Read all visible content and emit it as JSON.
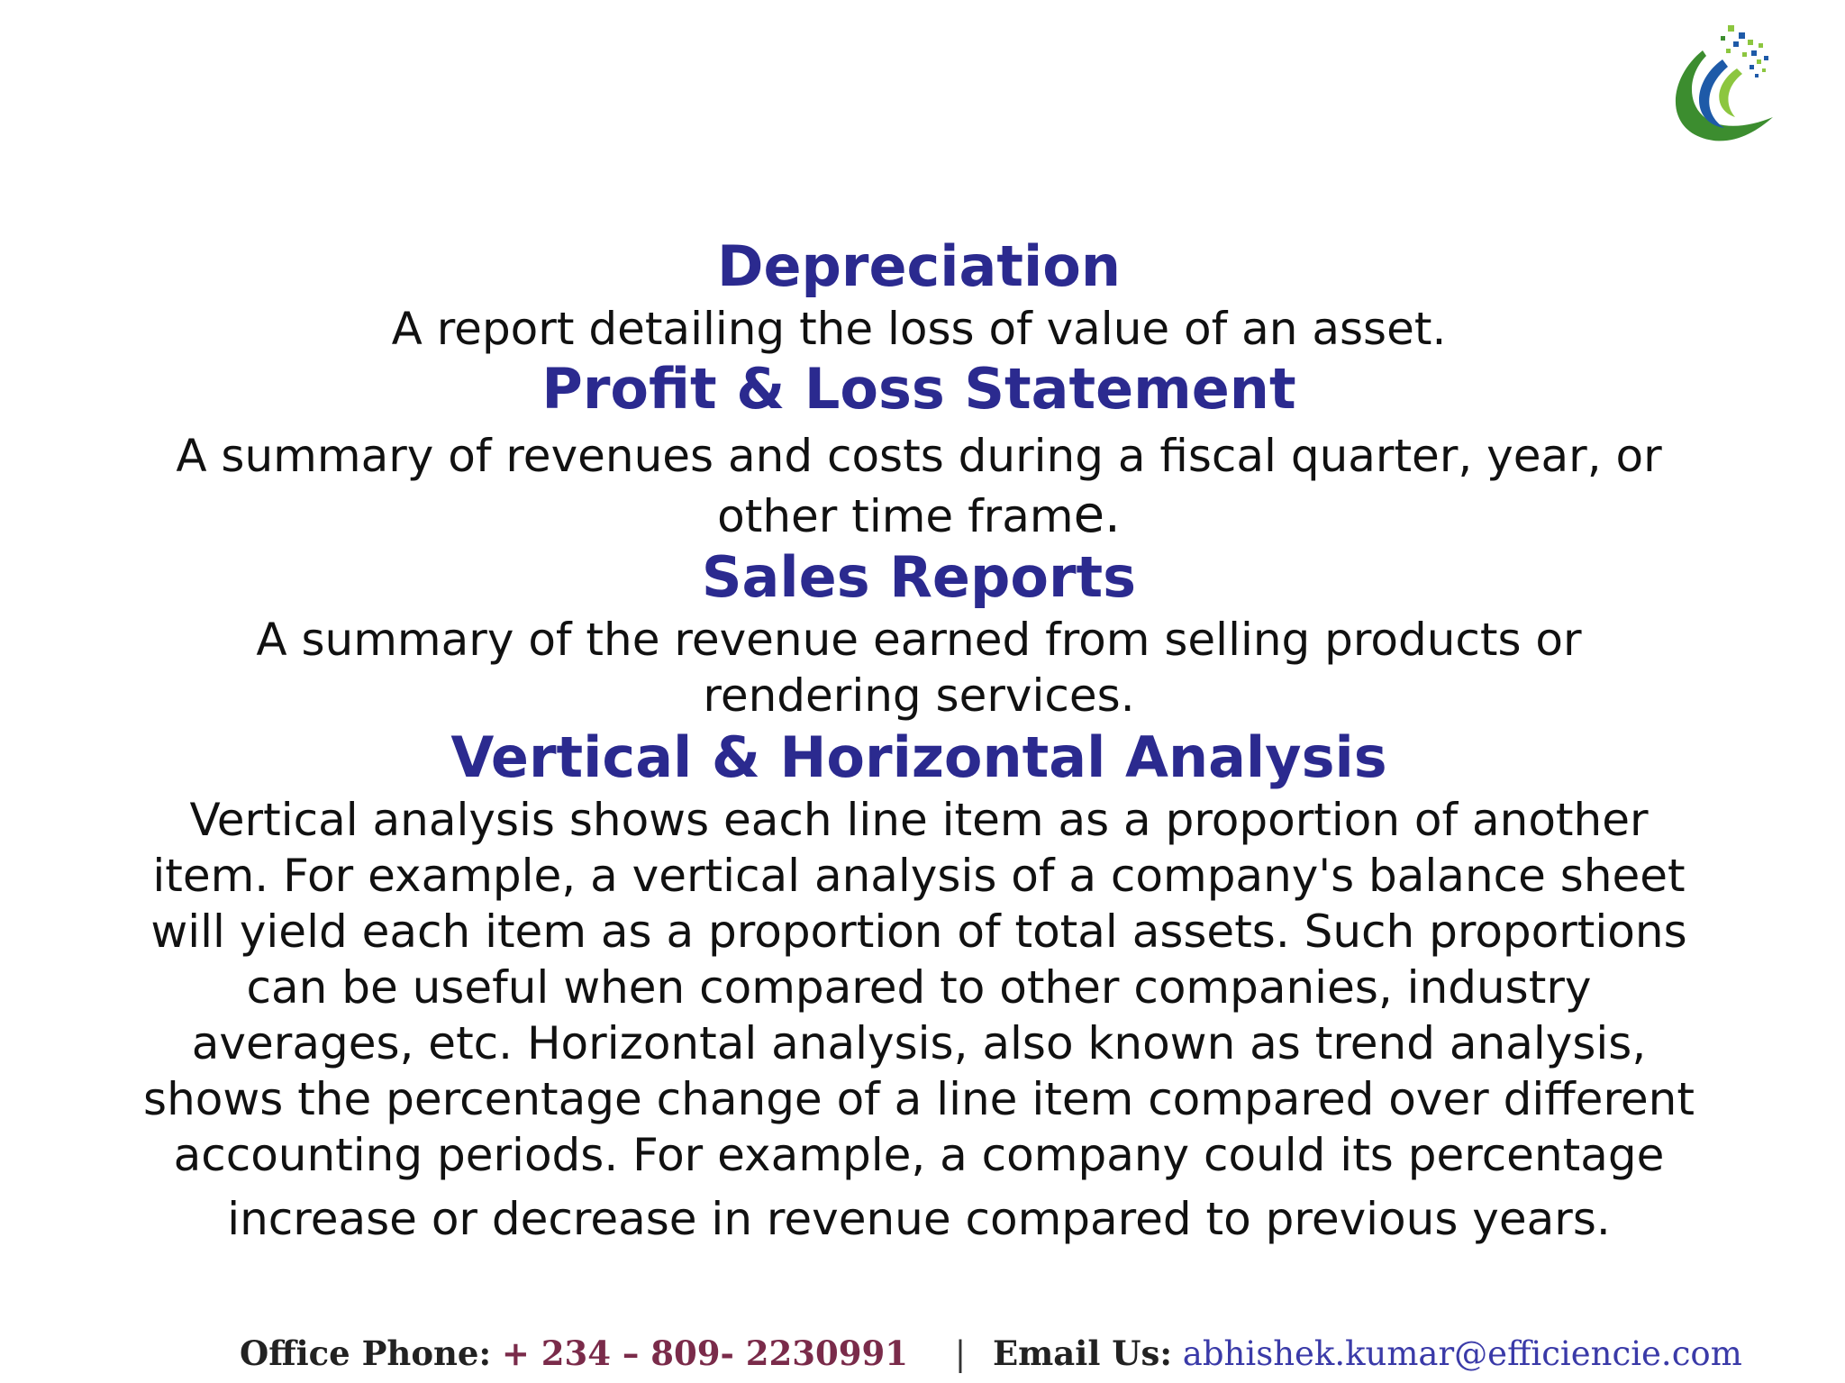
{
  "logo": {
    "icon": "efficiencie-swoosh-logo",
    "colors": [
      "#2e7d32",
      "#1e5aa8",
      "#8cc63f"
    ]
  },
  "sections": [
    {
      "title": "Depreciation",
      "text": "A report detailing the loss of value of an asset."
    },
    {
      "title": "Profit & Loss Statement",
      "text_line1": "A summary of revenues and costs during a fiscal quarter, year, or",
      "text_line2_prefix": "other time fram",
      "text_line2_suffix": "e."
    },
    {
      "title": "Sales Reports",
      "text_line1": "A summary of the revenue earned from selling products or",
      "text_line2": "rendering services."
    },
    {
      "title": "Vertical & Horizontal Analysis",
      "lines": [
        "Vertical analysis shows each line item as a proportion of another",
        "item. For example, a vertical analysis of a company's balance sheet",
        "will yield each item as a proportion of total assets. Such proportions",
        "can be useful when compared to other companies, industry",
        "averages, etc. Horizontal analysis, also known as trend analysis,",
        "shows the percentage change of a line item compared over different",
        "accounting periods. For example, a company could its percentage",
        "increase or decrease in revenue compared to previous years."
      ]
    }
  ],
  "footer": {
    "phone_label": "Office Phone:",
    "phone_value": "+ 234 – 809- 2230991",
    "separator": "|",
    "email_label": "Email Us:",
    "email_value": "abhishek.kumar@efficiencie.com"
  },
  "colors": {
    "heading": "#2b2a8f",
    "body_text": "#111111",
    "phone": "#7a2b4a",
    "email": "#3a3aa8"
  }
}
